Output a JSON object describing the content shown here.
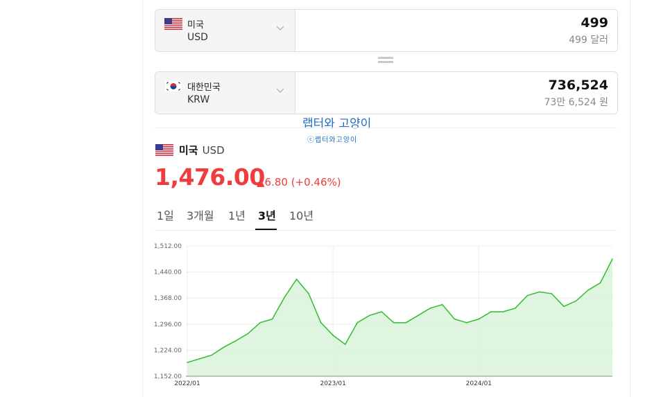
{
  "from": {
    "name": "미국",
    "code": "USD",
    "amount": "499",
    "amount_text": "499 달러",
    "flag": "us-flag-icon"
  },
  "to": {
    "name": "대한민국",
    "code": "KRW",
    "amount": "736,524",
    "amount_text": "73만 6,524 원",
    "flag": "kr-flag-icon"
  },
  "watermark": {
    "title": "랩터와 고양이",
    "caption": "ⓒ랩터와고양이"
  },
  "ticker": {
    "name": "미국",
    "code": "USD",
    "price": "1,476.00",
    "change": "▲6.80 (+0.46%)"
  },
  "tabs": [
    {
      "label": "1일",
      "active": false
    },
    {
      "label": "3개월",
      "active": false
    },
    {
      "label": "1년",
      "active": false
    },
    {
      "label": "3년",
      "active": true
    },
    {
      "label": "10년",
      "active": false
    }
  ],
  "colors": {
    "up": "#f03c3c",
    "line": "#2fbe2f",
    "fill": "#d6f2d6"
  },
  "chart_data": {
    "type": "area",
    "y_ticks": [
      "1,512.00",
      "1,440.00",
      "1,368.00",
      "1,296.00",
      "1,224.00",
      "1,152.00"
    ],
    "ylim": [
      1152,
      1512
    ],
    "x_ticks": [
      "2022/01",
      "2023/01",
      "2024/01"
    ],
    "grid": true,
    "series": [
      {
        "x": [
          "2022/01",
          "2022/02",
          "2022/03",
          "2022/04",
          "2022/05",
          "2022/06",
          "2022/07",
          "2022/08",
          "2022/09",
          "2022/10",
          "2022/11",
          "2022/12",
          "2023/01",
          "2023/02",
          "2023/03",
          "2023/04",
          "2023/05",
          "2023/06",
          "2023/07",
          "2023/08",
          "2023/09",
          "2023/10",
          "2023/11",
          "2023/12",
          "2024/01",
          "2024/02",
          "2024/03",
          "2024/04",
          "2024/05",
          "2024/06",
          "2024/07",
          "2024/08",
          "2024/09",
          "2024/10",
          "2024/11",
          "2024/12"
        ],
        "values": [
          1190,
          1200,
          1210,
          1232,
          1250,
          1270,
          1300,
          1310,
          1370,
          1420,
          1380,
          1300,
          1265,
          1240,
          1300,
          1320,
          1330,
          1300,
          1300,
          1320,
          1340,
          1350,
          1310,
          1300,
          1310,
          1330,
          1330,
          1340,
          1375,
          1385,
          1380,
          1345,
          1360,
          1390,
          1410,
          1476
        ]
      }
    ]
  }
}
